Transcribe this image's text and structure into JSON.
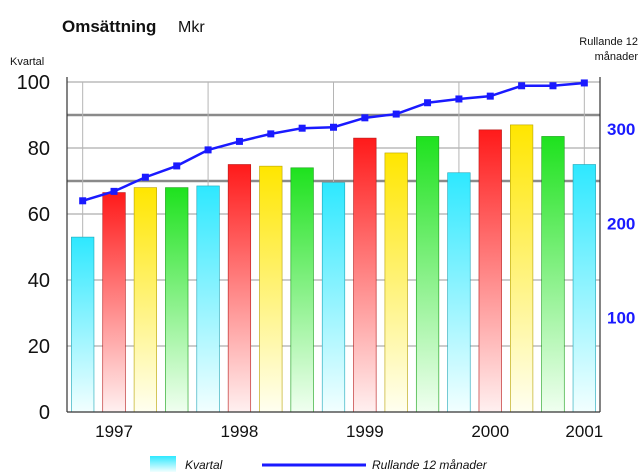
{
  "chart_data": {
    "type": "bar",
    "title": "Omsättning",
    "unit": "Mkr",
    "left_axis_label": "Kvartal",
    "right_axis_label_line1": "Rullande 12",
    "right_axis_label_line2": "månader",
    "ylim": [
      0,
      100
    ],
    "y_ticks": [
      "0",
      "20",
      "40",
      "60",
      "80",
      "100"
    ],
    "y2lim": [
      0,
      350
    ],
    "y2_ticks": [
      "100",
      "200",
      "300"
    ],
    "year_labels": [
      "1997",
      "1998",
      "1999",
      "2000",
      "2001"
    ],
    "grid": true,
    "series": [
      {
        "name": "Kvartal",
        "type": "bar",
        "values": [
          53,
          66.5,
          68,
          68,
          68.5,
          75,
          74.5,
          74,
          69.5,
          83,
          78.5,
          83.5,
          72.5,
          85.5,
          87,
          83.5,
          75
        ],
        "colors": [
          "cyan",
          "red",
          "yellow",
          "green",
          "cyan",
          "red",
          "yellow",
          "green",
          "cyan",
          "red",
          "yellow",
          "green",
          "cyan",
          "red",
          "yellow",
          "green",
          "cyan"
        ]
      },
      {
        "name": "Rullande 12 månader",
        "type": "line",
        "color": "#1a1aff",
        "values": [
          224,
          234,
          249,
          261,
          278,
          287,
          295,
          301,
          302,
          312,
          316,
          328,
          332,
          335,
          346,
          346,
          349
        ]
      }
    ],
    "legend": {
      "placement": "bottom",
      "bar_label": "Kvartal",
      "line_label": "Rullande 12 månader"
    }
  }
}
